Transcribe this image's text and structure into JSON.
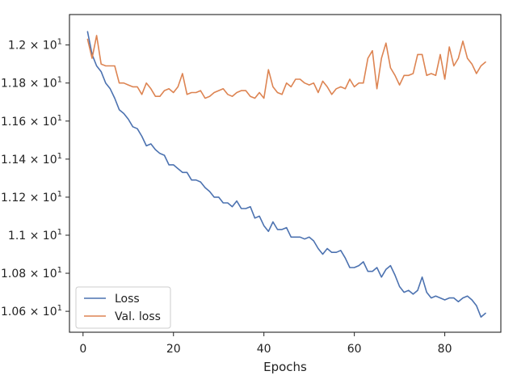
{
  "chart_data": {
    "type": "line",
    "xlabel": "Epochs",
    "ylabel": "",
    "title": "",
    "xlim": [
      -3,
      92.4
    ],
    "ylim": [
      10.49,
      12.16
    ],
    "x_ticks": [
      0,
      20,
      40,
      60,
      80
    ],
    "x_tick_labels": [
      "0",
      "20",
      "40",
      "60",
      "80"
    ],
    "y_ticks": [
      10.6,
      10.8,
      11.0,
      11.2,
      11.4,
      11.6,
      11.8,
      12.0
    ],
    "y_tick_labels": [
      {
        "mantissa": "1.06",
        "exponent": "1"
      },
      {
        "mantissa": "1.08",
        "exponent": "1"
      },
      {
        "mantissa": "1.1",
        "exponent": "1"
      },
      {
        "mantissa": "1.12",
        "exponent": "1"
      },
      {
        "mantissa": "1.14",
        "exponent": "1"
      },
      {
        "mantissa": "1.16",
        "exponent": "1"
      },
      {
        "mantissa": "1.18",
        "exponent": "1"
      },
      {
        "mantissa": "1.2",
        "exponent": "1"
      }
    ],
    "y_tick_times": "×",
    "y_tick_base": "10",
    "grid": false,
    "legend_position": "lower-left",
    "series": [
      {
        "name": "Loss",
        "color": "#4c72b0",
        "x": [
          1,
          2,
          3,
          4,
          5,
          6,
          7,
          8,
          9,
          10,
          11,
          12,
          13,
          14,
          15,
          16,
          17,
          18,
          19,
          20,
          21,
          22,
          23,
          24,
          25,
          26,
          27,
          28,
          29,
          30,
          31,
          32,
          33,
          34,
          35,
          36,
          37,
          38,
          39,
          40,
          41,
          42,
          43,
          44,
          45,
          46,
          47,
          48,
          49,
          50,
          51,
          52,
          53,
          54,
          55,
          56,
          57,
          58,
          59,
          60,
          61,
          62,
          63,
          64,
          65,
          66,
          67,
          68,
          69,
          70,
          71,
          72,
          73,
          74,
          75,
          76,
          77,
          78,
          79,
          80,
          81,
          82,
          83,
          84,
          85,
          86,
          87,
          88,
          89
        ],
        "y": [
          12.07,
          11.95,
          11.89,
          11.86,
          11.8,
          11.77,
          11.72,
          11.66,
          11.64,
          11.61,
          11.57,
          11.56,
          11.52,
          11.47,
          11.48,
          11.45,
          11.43,
          11.42,
          11.37,
          11.37,
          11.35,
          11.33,
          11.33,
          11.29,
          11.29,
          11.28,
          11.25,
          11.23,
          11.2,
          11.2,
          11.17,
          11.17,
          11.15,
          11.18,
          11.14,
          11.14,
          11.15,
          11.09,
          11.1,
          11.05,
          11.02,
          11.07,
          11.03,
          11.03,
          11.04,
          10.99,
          10.99,
          10.99,
          10.98,
          10.99,
          10.97,
          10.93,
          10.9,
          10.93,
          10.91,
          10.91,
          10.92,
          10.88,
          10.83,
          10.83,
          10.84,
          10.86,
          10.81,
          10.81,
          10.83,
          10.78,
          10.82,
          10.84,
          10.79,
          10.73,
          10.7,
          10.71,
          10.69,
          10.71,
          10.78,
          10.7,
          10.67,
          10.68,
          10.67,
          10.66,
          10.67,
          10.67,
          10.65,
          10.67,
          10.68,
          10.66,
          10.63,
          10.57,
          10.59
        ]
      },
      {
        "name": "Val. loss",
        "color": "#dd8452",
        "x": [
          1,
          2,
          3,
          4,
          5,
          6,
          7,
          8,
          9,
          10,
          11,
          12,
          13,
          14,
          15,
          16,
          17,
          18,
          19,
          20,
          21,
          22,
          23,
          24,
          25,
          26,
          27,
          28,
          29,
          30,
          31,
          32,
          33,
          34,
          35,
          36,
          37,
          38,
          39,
          40,
          41,
          42,
          43,
          44,
          45,
          46,
          47,
          48,
          49,
          50,
          51,
          52,
          53,
          54,
          55,
          56,
          57,
          58,
          59,
          60,
          61,
          62,
          63,
          64,
          65,
          66,
          67,
          68,
          69,
          70,
          71,
          72,
          73,
          74,
          75,
          76,
          77,
          78,
          79,
          80,
          81,
          82,
          83,
          84,
          85,
          86,
          87,
          88,
          89
        ],
        "y": [
          12.03,
          11.93,
          12.05,
          11.9,
          11.89,
          11.89,
          11.89,
          11.8,
          11.8,
          11.79,
          11.78,
          11.78,
          11.74,
          11.8,
          11.77,
          11.73,
          11.73,
          11.76,
          11.77,
          11.75,
          11.78,
          11.85,
          11.74,
          11.75,
          11.75,
          11.76,
          11.72,
          11.73,
          11.75,
          11.76,
          11.77,
          11.74,
          11.73,
          11.75,
          11.76,
          11.76,
          11.73,
          11.72,
          11.75,
          11.72,
          11.87,
          11.78,
          11.75,
          11.74,
          11.8,
          11.78,
          11.82,
          11.82,
          11.8,
          11.79,
          11.8,
          11.75,
          11.81,
          11.78,
          11.74,
          11.77,
          11.78,
          11.77,
          11.82,
          11.78,
          11.8,
          11.8,
          11.93,
          11.97,
          11.77,
          11.93,
          12.01,
          11.88,
          11.84,
          11.79,
          11.84,
          11.84,
          11.85,
          11.95,
          11.95,
          11.84,
          11.85,
          11.84,
          11.95,
          11.82,
          11.99,
          11.89,
          11.93,
          12.02,
          11.93,
          11.9,
          11.85,
          11.89,
          11.91
        ]
      }
    ]
  }
}
